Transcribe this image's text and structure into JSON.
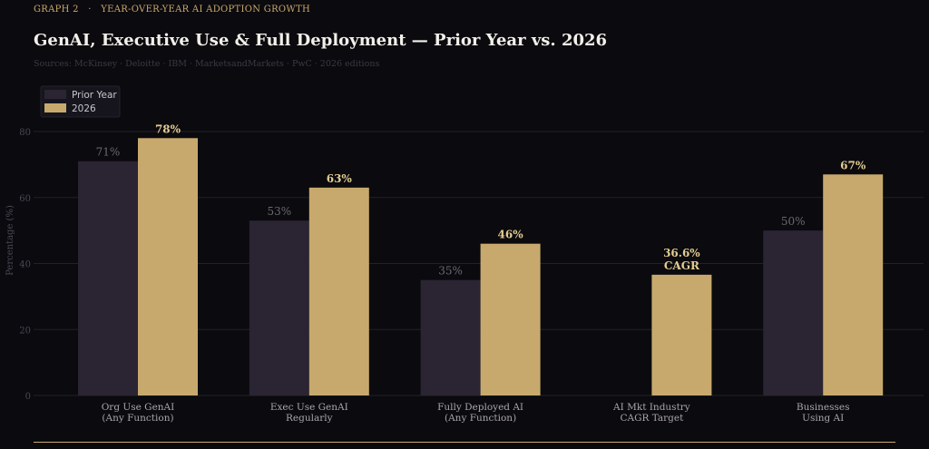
{
  "header": {
    "graph_number": "GRAPH 2",
    "separator": "·",
    "eyebrow": "YEAR-OVER-YEAR AI ADOPTION GROWTH",
    "title": "GenAI, Executive Use & Full Deployment — Prior Year vs. 2026",
    "sources": "Sources: McKinsey · Deloitte · IBM · MarketsandMarkets · PwC · 2026 editions"
  },
  "chart_data": {
    "type": "bar",
    "categories": [
      [
        "Org Use GenAI",
        "(Any Function)"
      ],
      [
        "Exec Use GenAI",
        "Regularly"
      ],
      [
        "Fully Deployed AI",
        "(Any Function)"
      ],
      [
        "AI Mkt Industry",
        "CAGR Target"
      ],
      [
        "Businesses",
        "Using AI"
      ]
    ],
    "series": [
      {
        "name": "Prior Year",
        "values": [
          71,
          53,
          35,
          null,
          50
        ],
        "labels": [
          "71%",
          "53%",
          "35%",
          null,
          "50%"
        ],
        "color": "#2a2433"
      },
      {
        "name": "2026",
        "values": [
          78,
          63,
          46,
          36.6,
          67
        ],
        "labels": [
          [
            "78%"
          ],
          [
            "63%"
          ],
          [
            "46%"
          ],
          [
            "36.6%",
            "CAGR"
          ],
          [
            "67%"
          ]
        ],
        "color": "#c8a96d"
      }
    ],
    "ylabel": "Percentage (%)",
    "ylim": [
      0,
      80
    ],
    "yticks": [
      0,
      20,
      40,
      60,
      80
    ],
    "grid": true,
    "legend": "top-left",
    "colors": {
      "background": "#0b0a0e",
      "grid": "#22212a",
      "axis_text": "#4a4856",
      "category_text": "#a9a6ae",
      "prior_label": "#6b6872",
      "new_label": "#e3cd93",
      "legend_bg": "#16151d"
    }
  }
}
